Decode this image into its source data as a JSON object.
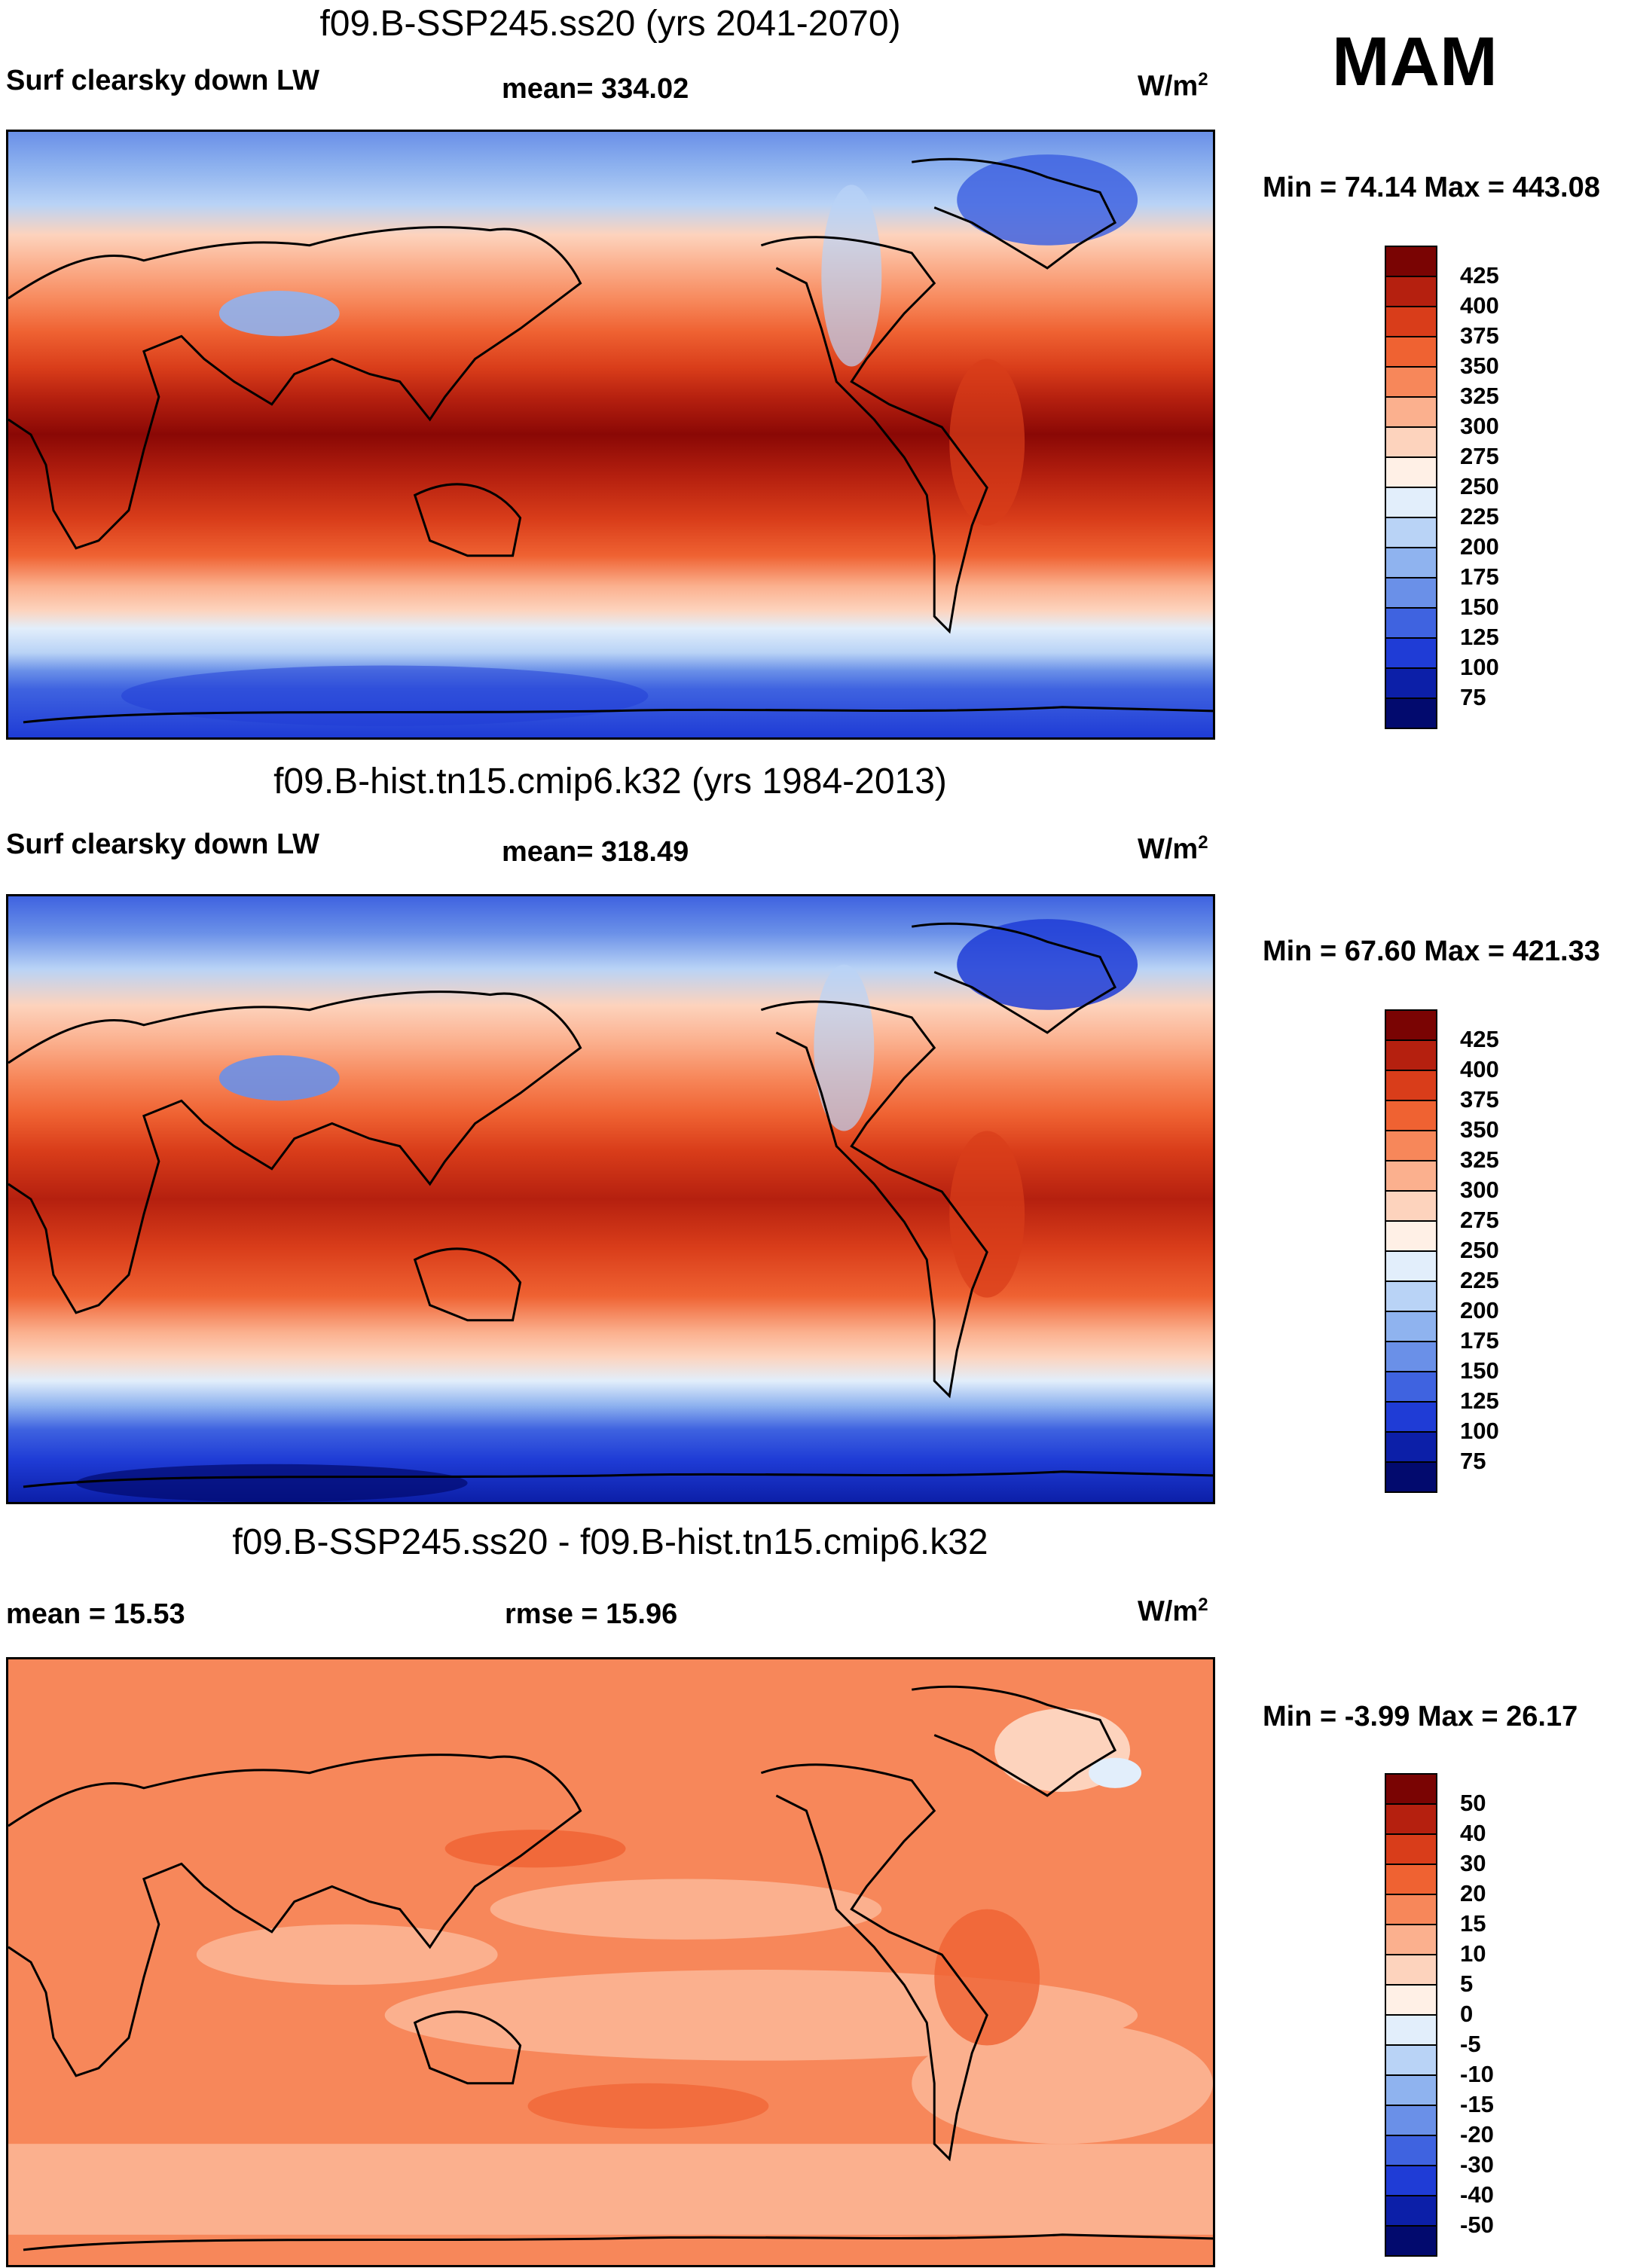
{
  "season": "MAM",
  "panels": [
    {
      "title": "f09.B-SSP245.ss20 (yrs 2041-2070)",
      "left_label": "Surf clearsky down LW",
      "center_label": "mean= 334.02",
      "units": "W/m",
      "units_sup": "2",
      "minmax": "Min =  74.14 Max = 443.08",
      "colorbar_ticks": [
        "425",
        "400",
        "375",
        "350",
        "325",
        "300",
        "275",
        "250",
        "225",
        "200",
        "175",
        "150",
        "125",
        "100",
        "75"
      ],
      "colorbar_colors": [
        "#7a0403",
        "#b5200f",
        "#d93d1a",
        "#ef6232",
        "#f7875a",
        "#fbb08e",
        "#fdd3bd",
        "#fff0e6",
        "#e2eefb",
        "#b9d3f6",
        "#8fb3ef",
        "#6a90e8",
        "#3f63e0",
        "#1f3cd6",
        "#0c1fa8",
        "#020a6e"
      ]
    },
    {
      "title": "f09.B-hist.tn15.cmip6.k32 (yrs 1984-2013)",
      "left_label": "Surf clearsky down LW",
      "center_label": "mean= 318.49",
      "units": "W/m",
      "units_sup": "2",
      "minmax": "Min =  67.60 Max = 421.33",
      "colorbar_ticks": [
        "425",
        "400",
        "375",
        "350",
        "325",
        "300",
        "275",
        "250",
        "225",
        "200",
        "175",
        "150",
        "125",
        "100",
        "75"
      ],
      "colorbar_colors": [
        "#7a0403",
        "#b5200f",
        "#d93d1a",
        "#ef6232",
        "#f7875a",
        "#fbb08e",
        "#fdd3bd",
        "#fff0e6",
        "#e2eefb",
        "#b9d3f6",
        "#8fb3ef",
        "#6a90e8",
        "#3f63e0",
        "#1f3cd6",
        "#0c1fa8",
        "#020a6e"
      ]
    },
    {
      "title": "f09.B-SSP245.ss20 - f09.B-hist.tn15.cmip6.k32",
      "left_label": "mean =  15.53",
      "center_label": "rmse =  15.96",
      "units": "W/m",
      "units_sup": "2",
      "minmax": "Min =  -3.99 Max =  26.17",
      "colorbar_ticks": [
        "50",
        "40",
        "30",
        "20",
        "15",
        "10",
        "5",
        "0",
        "-5",
        "-10",
        "-15",
        "-20",
        "-30",
        "-40",
        "-50"
      ],
      "colorbar_colors": [
        "#7a0403",
        "#b5200f",
        "#d93d1a",
        "#ef6232",
        "#f7875a",
        "#fbb08e",
        "#fdd3bd",
        "#fff0e6",
        "#e2eefb",
        "#b9d3f6",
        "#8fb3ef",
        "#6a90e8",
        "#3f63e0",
        "#1f3cd6",
        "#0c1fa8",
        "#020a6e"
      ]
    }
  ]
}
